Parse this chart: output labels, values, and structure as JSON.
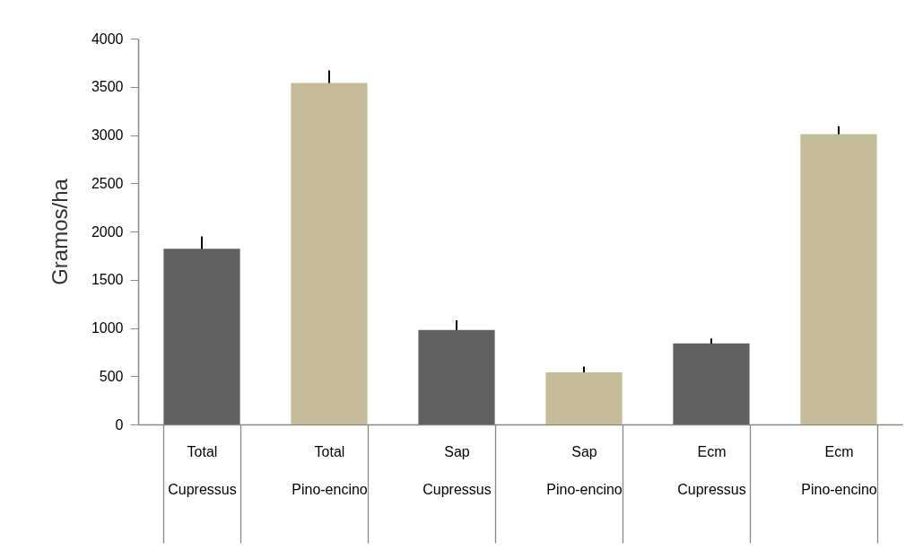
{
  "chart_data": {
    "type": "bar",
    "ylabel": "Gramos/ha",
    "categories": [
      "Total\nCupressus",
      "Total\nPino-encino",
      "Sap\nCupressus",
      "Sap\nPino-encino",
      "Ecm\nCupressus",
      "Ecm\nPino-encino"
    ],
    "values": [
      1820,
      3540,
      980,
      540,
      840,
      3010
    ],
    "errors": [
      130,
      130,
      100,
      60,
      50,
      80
    ],
    "colors": [
      "#606060",
      "#c4bc98",
      "#606060",
      "#c4bc98",
      "#606060",
      "#c4bc98"
    ],
    "ylim": [
      0,
      4000
    ],
    "yticks": [
      0,
      500,
      1000,
      1500,
      2000,
      2500,
      3000,
      3500,
      4000
    ],
    "grid": false
  }
}
